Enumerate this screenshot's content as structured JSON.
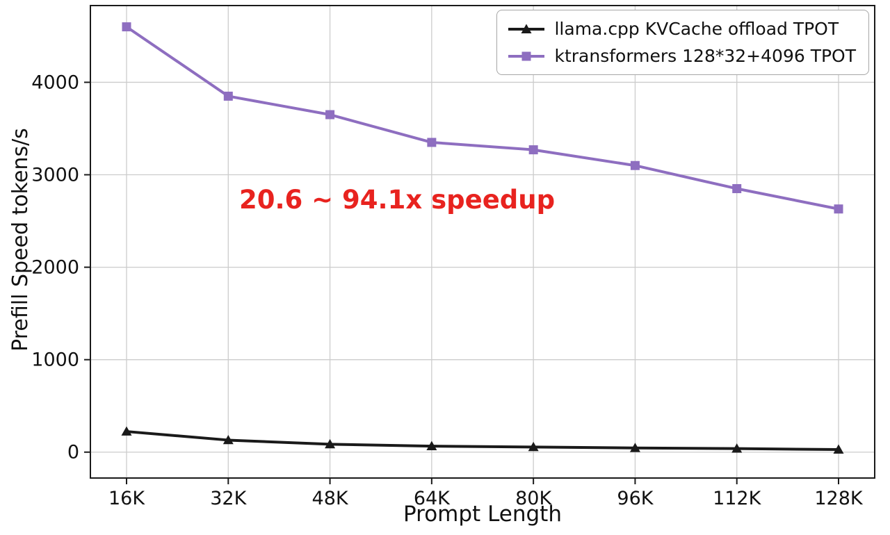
{
  "chart_data": {
    "type": "line",
    "categories": [
      "16K",
      "32K",
      "48K",
      "64K",
      "80K",
      "96K",
      "112K",
      "128K"
    ],
    "series": [
      {
        "name": "llama.cpp KVCache offload TPOT",
        "color": "#1a1a1a",
        "marker": "triangle",
        "values": [
          223,
          130,
          85,
          65,
          55,
          45,
          38,
          28
        ]
      },
      {
        "name": "ktransformers 128*32+4096 TPOT",
        "color": "#8e6ec0",
        "marker": "square",
        "values": [
          4600,
          3850,
          3650,
          3350,
          3270,
          3100,
          2850,
          2630
        ]
      }
    ],
    "xlabel": "Prompt Length",
    "ylabel": "Prefill Speed tokens/s",
    "yticks": [
      0,
      1000,
      2000,
      3000,
      4000
    ],
    "ylim": [
      -280,
      4830
    ],
    "grid": true,
    "legend_position": "upper right",
    "annotation": {
      "text": "20.6 ~ 94.1x speedup",
      "color": "#e8231f"
    }
  }
}
